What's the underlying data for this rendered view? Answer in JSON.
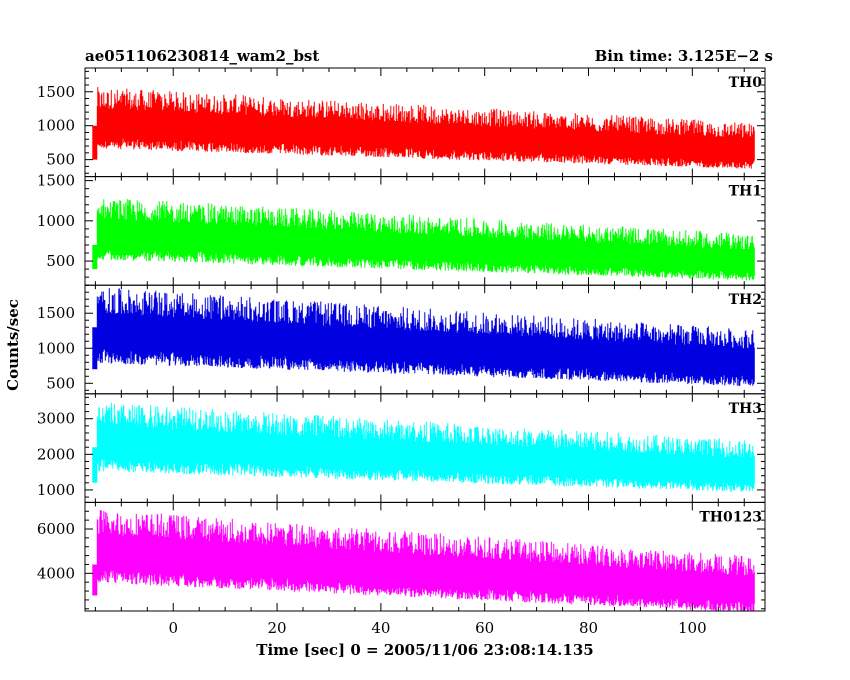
{
  "chart_data": {
    "type": "line",
    "title": "ae051106230814_wam2_bst",
    "bin_time": "Bin time: 3.125E−2 s",
    "xlabel": "Time [sec] 0 = 2005/11/06 23:08:14.135",
    "ylabel": "Counts/sec",
    "xlim": [
      -17,
      114
    ],
    "x_ticks": [
      0,
      20,
      40,
      60,
      80,
      100
    ],
    "x_tick_labels": [
      "0",
      "20",
      "40",
      "60",
      "80",
      "100"
    ],
    "data_start": -15.5,
    "data_end": 112,
    "panels": [
      {
        "name": "TH0",
        "color": "#ff0000",
        "ylim": [
          250,
          1850
        ],
        "y_ticks": [
          500,
          1000,
          1500
        ],
        "y_tick_labels": [
          "500",
          "1000",
          "1500"
        ],
        "pre_level": [
          -15.5,
          500,
          1000
        ],
        "mean_start": 1050,
        "mean_end": 650,
        "spread": 350
      },
      {
        "name": "TH1",
        "color": "#00ff00",
        "ylim": [
          200,
          1550
        ],
        "y_ticks": [
          500,
          1000,
          1500
        ],
        "y_tick_labels": [
          "500",
          "1000",
          "1500"
        ],
        "pre_level": [
          -15.5,
          400,
          700
        ],
        "mean_start": 850,
        "mean_end": 500,
        "spread": 300
      },
      {
        "name": "TH2",
        "color": "#0000e0",
        "ylim": [
          350,
          1900
        ],
        "y_ticks": [
          500,
          1000,
          1500
        ],
        "y_tick_labels": [
          "500",
          "1000",
          "1500"
        ],
        "pre_level": [
          -15.5,
          700,
          1300
        ],
        "mean_start": 1250,
        "mean_end": 800,
        "spread": 420
      },
      {
        "name": "TH3",
        "color": "#00ffff",
        "ylim": [
          650,
          3700
        ],
        "y_ticks": [
          1000,
          2000,
          3000
        ],
        "y_tick_labels": [
          "1000",
          "2000",
          "3000"
        ],
        "pre_level": [
          -15.5,
          1200,
          2200
        ],
        "mean_start": 2350,
        "mean_end": 1550,
        "spread": 750
      },
      {
        "name": "TH0123",
        "color": "#ff00ff",
        "ylim": [
          2300,
          7200
        ],
        "y_ticks": [
          4000,
          6000
        ],
        "y_tick_labels": [
          "4000",
          "6000"
        ],
        "pre_level": [
          -15.5,
          3000,
          4400
        ],
        "mean_start": 5000,
        "mean_end": 3300,
        "spread": 1300
      }
    ]
  }
}
